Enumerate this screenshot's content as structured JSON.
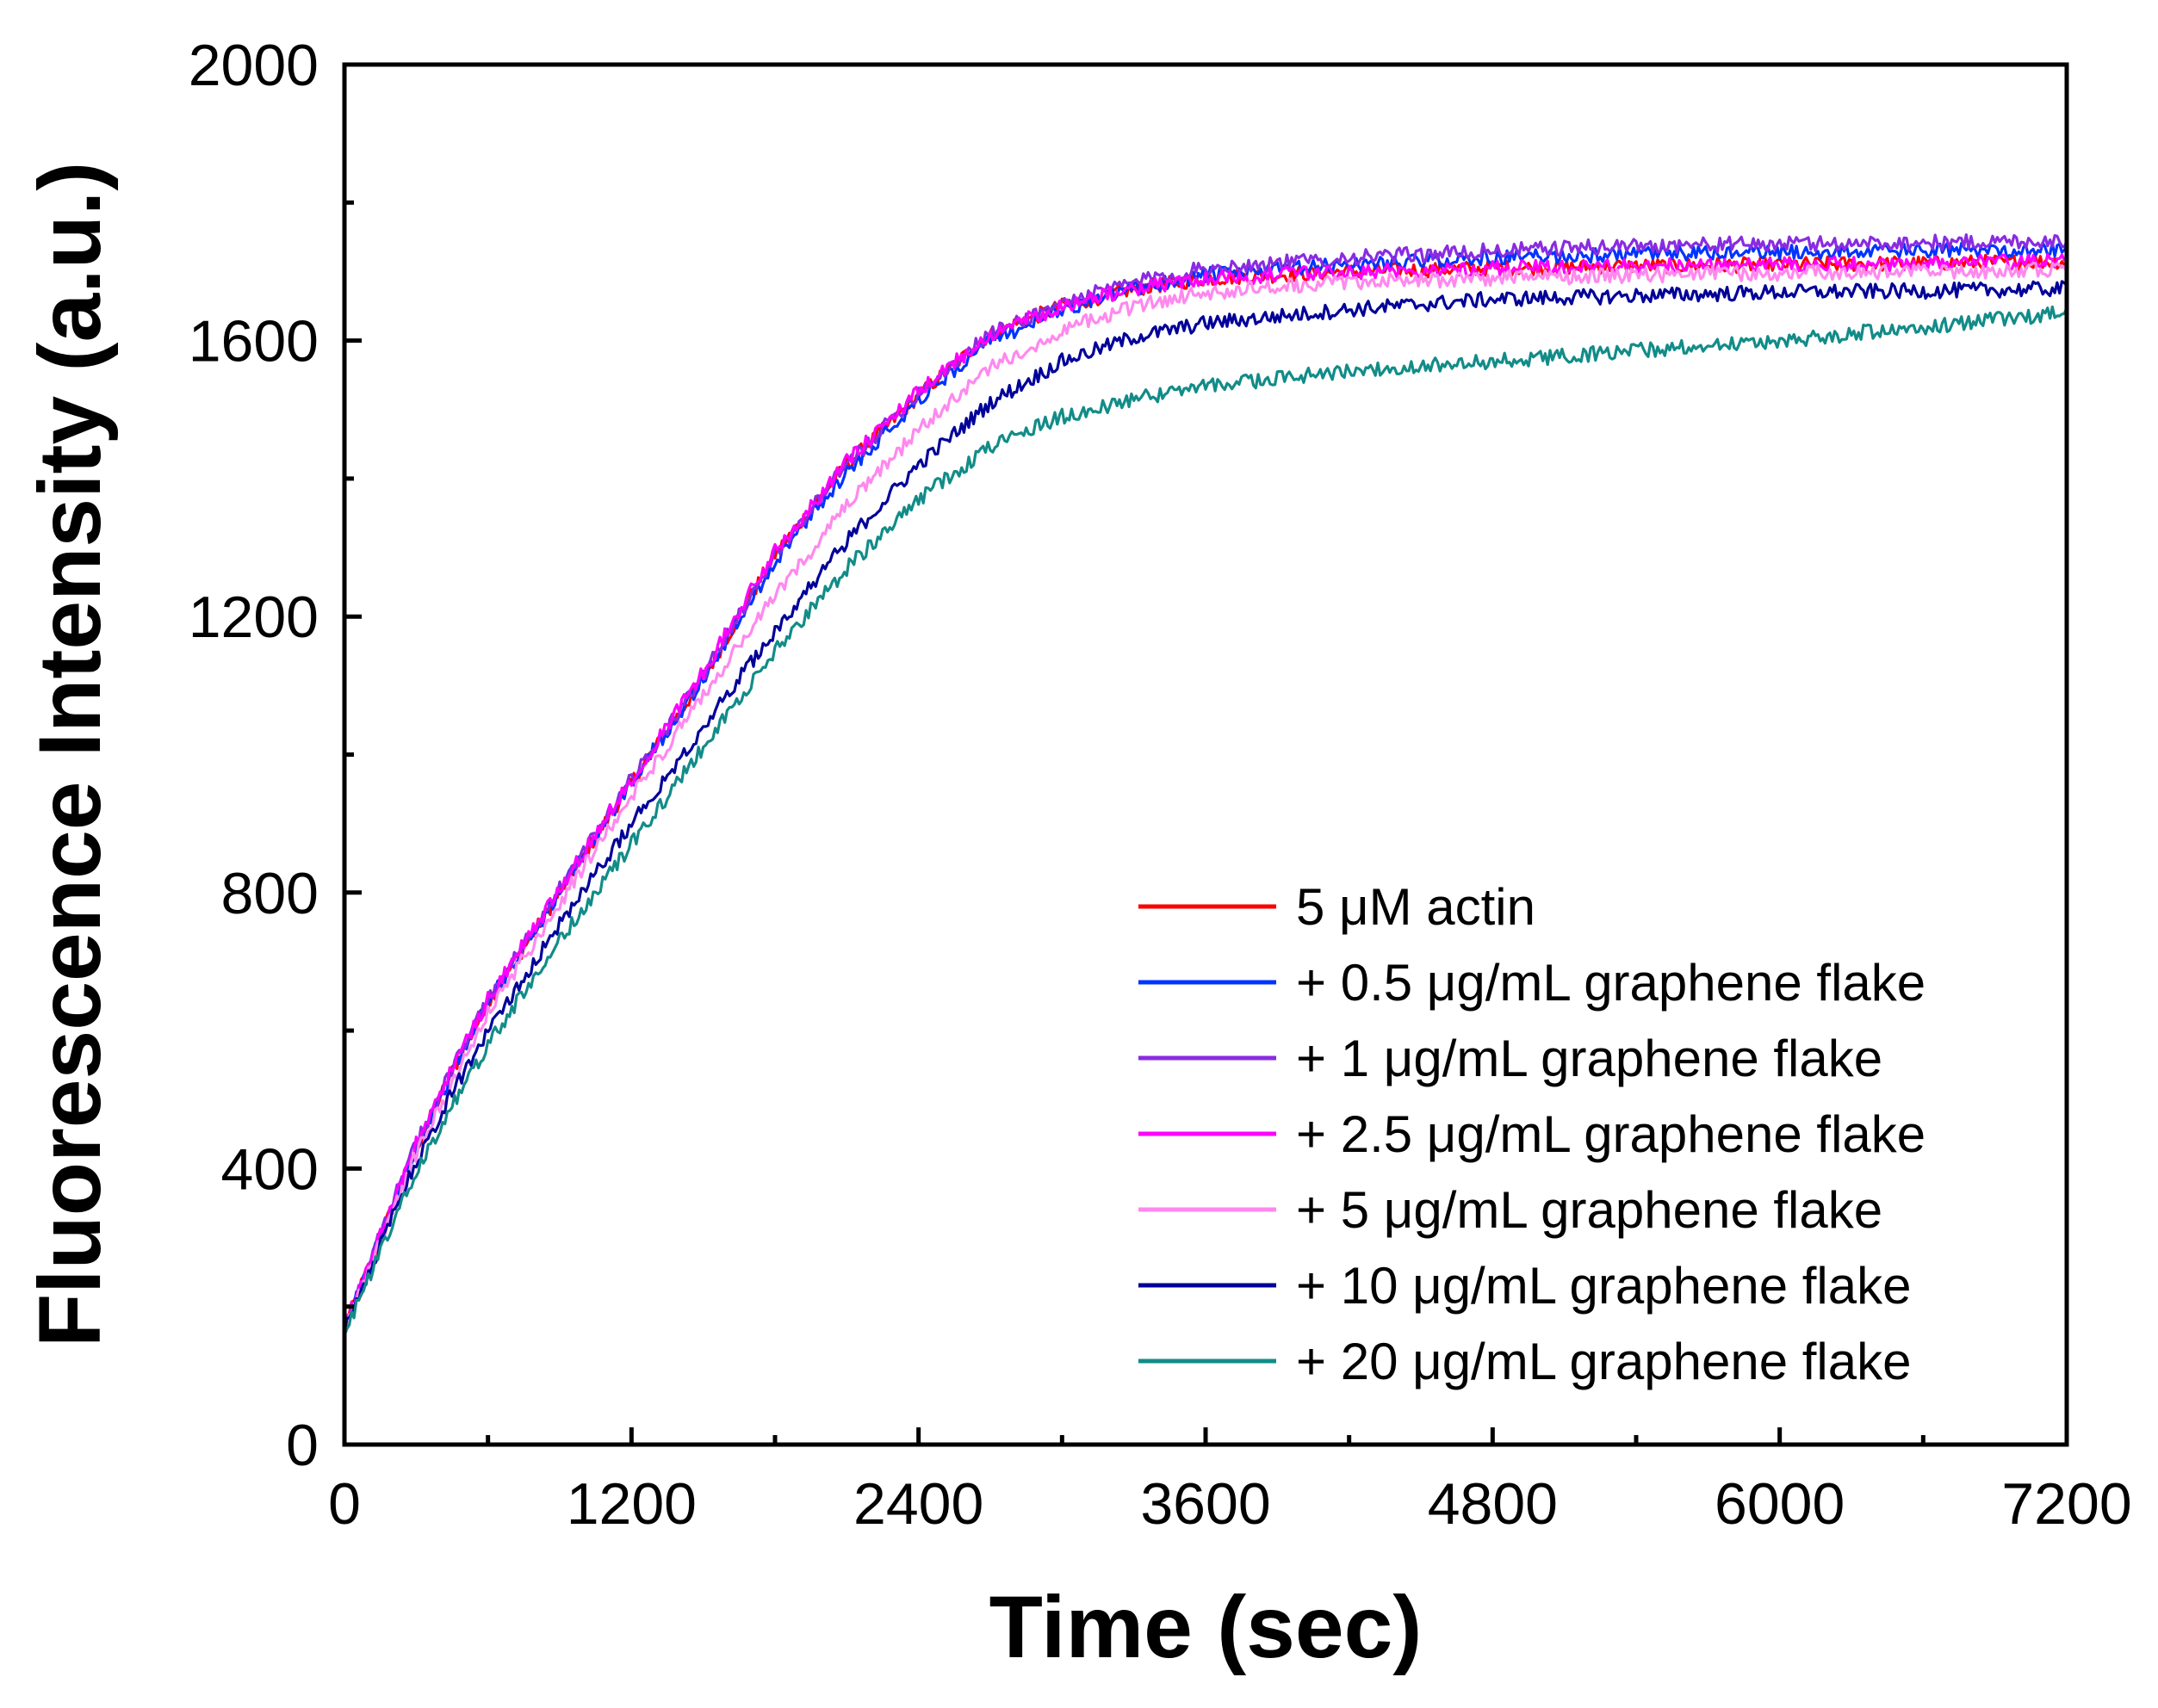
{
  "chart_data": {
    "type": "line",
    "title": "",
    "xlabel": "Time (sec)",
    "ylabel": "Fluorescence Intensity (a.u.)",
    "xlim": [
      0,
      7200
    ],
    "ylim": [
      0,
      2000
    ],
    "xticks": [
      0,
      1200,
      2400,
      3600,
      4800,
      6000,
      7200
    ],
    "yticks": [
      0,
      400,
      800,
      1200,
      1600,
      2000
    ],
    "xtick_labels": [
      "0",
      "1200",
      "2400",
      "3600",
      "4800",
      "6000",
      "7200"
    ],
    "ytick_labels": [
      "0",
      "400",
      "800",
      "1200",
      "1600",
      "2000"
    ],
    "grid": false,
    "legend_position": "bottom-right",
    "x": [
      0,
      150,
      300,
      450,
      600,
      900,
      1200,
      1500,
      1800,
      2100,
      2400,
      2700,
      3000,
      3300,
      3600,
      4200,
      4800,
      5400,
      6000,
      6600,
      7200
    ],
    "series": [
      {
        "name": "5 μM actin",
        "color": "#ff0000",
        "values": [
          170,
          300,
          430,
          540,
          640,
          800,
          960,
          1110,
          1290,
          1420,
          1520,
          1610,
          1650,
          1675,
          1690,
          1700,
          1705,
          1708,
          1710,
          1712,
          1715
        ]
      },
      {
        "name": "+ 0.5 μg/mL graphene flake",
        "color": "#0033ff",
        "values": [
          170,
          300,
          430,
          540,
          640,
          800,
          960,
          1110,
          1280,
          1410,
          1515,
          1600,
          1645,
          1675,
          1695,
          1710,
          1720,
          1725,
          1728,
          1730,
          1732
        ]
      },
      {
        "name": "+ 1 μg/mL graphene flake",
        "color": "#8a2be2",
        "values": [
          170,
          305,
          435,
          545,
          645,
          805,
          965,
          1115,
          1290,
          1420,
          1525,
          1610,
          1655,
          1685,
          1705,
          1720,
          1730,
          1738,
          1740,
          1742,
          1745
        ]
      },
      {
        "name": "+ 2.5 μg/mL graphene flake",
        "color": "#ff00ff",
        "values": [
          170,
          305,
          435,
          545,
          645,
          805,
          965,
          1120,
          1295,
          1425,
          1525,
          1610,
          1650,
          1675,
          1690,
          1700,
          1705,
          1708,
          1710,
          1712,
          1715
        ]
      },
      {
        "name": "+ 5 μg/mL graphene flake",
        "color": "#ff88ee",
        "values": [
          165,
          295,
          420,
          525,
          625,
          785,
          940,
          1085,
          1230,
          1360,
          1470,
          1560,
          1615,
          1650,
          1670,
          1685,
          1690,
          1695,
          1698,
          1700,
          1702
        ]
      },
      {
        "name": "+ 10 μg/mL graphene flake",
        "color": "#000099",
        "values": [
          165,
          290,
          410,
          510,
          600,
          755,
          900,
          1040,
          1180,
          1310,
          1420,
          1510,
          1570,
          1605,
          1625,
          1645,
          1660,
          1665,
          1670,
          1672,
          1675
        ]
      },
      {
        "name": "+ 20 μg/mL graphene flake",
        "color": "#128c88",
        "values": [
          160,
          280,
          395,
          490,
          580,
          730,
          870,
          1010,
          1150,
          1270,
          1370,
          1445,
          1490,
          1515,
          1535,
          1555,
          1570,
          1585,
          1600,
          1620,
          1640
        ]
      }
    ]
  }
}
